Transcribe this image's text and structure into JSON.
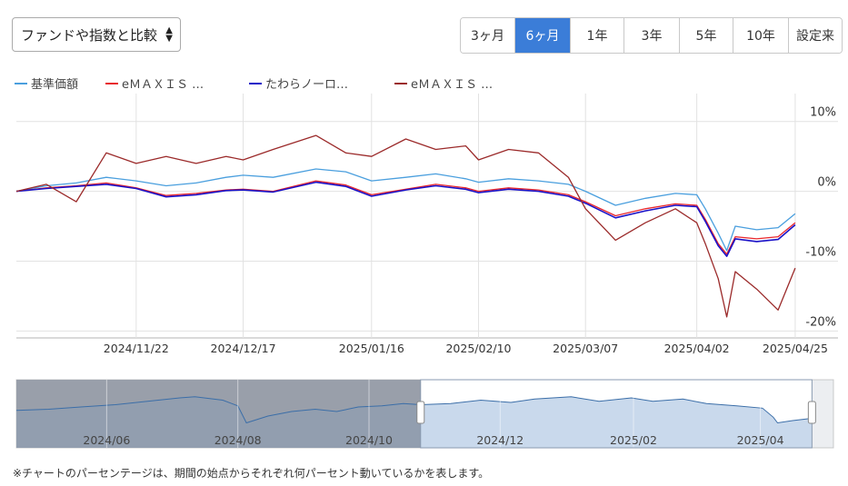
{
  "controls": {
    "compare_select": "ファンドや指数と比較",
    "periods": [
      {
        "label": "3ヶ月",
        "active": false
      },
      {
        "label": "6ヶ月",
        "active": true
      },
      {
        "label": "1年",
        "active": false
      },
      {
        "label": "3年",
        "active": false
      },
      {
        "label": "5年",
        "active": false
      },
      {
        "label": "10年",
        "active": false
      },
      {
        "label": "設定来",
        "active": false
      }
    ]
  },
  "legend": [
    {
      "label": "基準価額",
      "color": "#4a9fde"
    },
    {
      "label": "eＭＡＸＩＳ …",
      "color": "#e8262c"
    },
    {
      "label": "たわらノーロ…",
      "color": "#1a12c8"
    },
    {
      "label": "eＭＡＸＩＳ …",
      "color": "#9b2a2a"
    }
  ],
  "chart_data": {
    "type": "line",
    "y_unit": "%",
    "ylim": [
      -21,
      14
    ],
    "yticks": [
      10,
      0,
      -10,
      -20
    ],
    "ytick_labels": [
      "10%",
      "0%",
      "-10%",
      "-20%"
    ],
    "xlim": [
      "2024-10-25",
      "2025-05-05"
    ],
    "xticks": [
      "2024-11-22",
      "2024-12-17",
      "2025-01-16",
      "2025-02-10",
      "2025-03-07",
      "2025-04-02",
      "2025-04-25"
    ],
    "xtick_labels": [
      "2024/11/22",
      "2024/12/17",
      "2025/01/16",
      "2025/02/10",
      "2025/03/07",
      "2025/04/02",
      "2025/04/25"
    ],
    "grid": true,
    "legend_position": "top-left",
    "series": [
      {
        "name": "基準価額",
        "color": "#4a9fde",
        "x": [
          "2024-10-25",
          "2024-11-01",
          "2024-11-08",
          "2024-11-15",
          "2024-11-22",
          "2024-11-29",
          "2024-12-06",
          "2024-12-13",
          "2024-12-17",
          "2024-12-24",
          "2025-01-03",
          "2025-01-10",
          "2025-01-16",
          "2025-01-24",
          "2025-01-31",
          "2025-02-07",
          "2025-02-10",
          "2025-02-17",
          "2025-02-24",
          "2025-03-03",
          "2025-03-07",
          "2025-03-14",
          "2025-03-21",
          "2025-03-28",
          "2025-04-02",
          "2025-04-04",
          "2025-04-07",
          "2025-04-09",
          "2025-04-11",
          "2025-04-16",
          "2025-04-21",
          "2025-04-25"
        ],
        "y": [
          0.0,
          0.8,
          1.2,
          2.0,
          1.5,
          0.8,
          1.2,
          2.0,
          2.3,
          2.0,
          3.2,
          2.8,
          1.5,
          2.0,
          2.5,
          1.8,
          1.3,
          1.8,
          1.5,
          1.0,
          0.0,
          -2.0,
          -1.0,
          -0.3,
          -0.5,
          -2.5,
          -6.0,
          -8.5,
          -5.0,
          -5.5,
          -5.2,
          -3.2
        ]
      },
      {
        "name": "eＭＡＸＩＳ …",
        "color": "#e8262c",
        "x": [
          "2024-10-25",
          "2024-11-01",
          "2024-11-08",
          "2024-11-15",
          "2024-11-22",
          "2024-11-29",
          "2024-12-06",
          "2024-12-13",
          "2024-12-17",
          "2024-12-24",
          "2025-01-03",
          "2025-01-10",
          "2025-01-16",
          "2025-01-24",
          "2025-01-31",
          "2025-02-07",
          "2025-02-10",
          "2025-02-17",
          "2025-02-24",
          "2025-03-03",
          "2025-03-07",
          "2025-03-14",
          "2025-03-21",
          "2025-03-28",
          "2025-04-02",
          "2025-04-04",
          "2025-04-07",
          "2025-04-09",
          "2025-04-11",
          "2025-04-16",
          "2025-04-21",
          "2025-04-25"
        ],
        "y": [
          0.0,
          0.5,
          0.8,
          1.2,
          0.5,
          -0.6,
          -0.3,
          0.2,
          0.3,
          0.0,
          1.5,
          0.9,
          -0.5,
          0.3,
          1.0,
          0.5,
          0.0,
          0.5,
          0.2,
          -0.5,
          -1.5,
          -3.5,
          -2.5,
          -1.8,
          -2.0,
          -4.0,
          -7.5,
          -9.0,
          -6.5,
          -6.8,
          -6.5,
          -4.5
        ]
      },
      {
        "name": "たわらノーロ…",
        "color": "#1a12c8",
        "x": [
          "2024-10-25",
          "2024-11-01",
          "2024-11-08",
          "2024-11-15",
          "2024-11-22",
          "2024-11-29",
          "2024-12-06",
          "2024-12-13",
          "2024-12-17",
          "2024-12-24",
          "2025-01-03",
          "2025-01-10",
          "2025-01-16",
          "2025-01-24",
          "2025-01-31",
          "2025-02-07",
          "2025-02-10",
          "2025-02-17",
          "2025-02-24",
          "2025-03-03",
          "2025-03-07",
          "2025-03-14",
          "2025-03-21",
          "2025-03-28",
          "2025-04-02",
          "2025-04-04",
          "2025-04-07",
          "2025-04-09",
          "2025-04-11",
          "2025-04-16",
          "2025-04-21",
          "2025-04-25"
        ],
        "y": [
          0.0,
          0.4,
          0.7,
          1.0,
          0.4,
          -0.8,
          -0.5,
          0.1,
          0.2,
          -0.1,
          1.3,
          0.7,
          -0.7,
          0.2,
          0.8,
          0.3,
          -0.2,
          0.3,
          0.0,
          -0.7,
          -1.7,
          -3.8,
          -2.8,
          -2.0,
          -2.2,
          -4.3,
          -7.8,
          -9.3,
          -6.8,
          -7.2,
          -6.9,
          -4.8
        ]
      },
      {
        "name": "eＭＡＸＩＳ …",
        "color": "#9b2a2a",
        "x": [
          "2024-10-25",
          "2024-11-01",
          "2024-11-08",
          "2024-11-15",
          "2024-11-22",
          "2024-11-29",
          "2024-12-06",
          "2024-12-13",
          "2024-12-17",
          "2024-12-24",
          "2025-01-03",
          "2025-01-10",
          "2025-01-16",
          "2025-01-24",
          "2025-01-31",
          "2025-02-07",
          "2025-02-10",
          "2025-02-17",
          "2025-02-24",
          "2025-03-03",
          "2025-03-07",
          "2025-03-14",
          "2025-03-21",
          "2025-03-28",
          "2025-04-02",
          "2025-04-04",
          "2025-04-07",
          "2025-04-09",
          "2025-04-11",
          "2025-04-16",
          "2025-04-21",
          "2025-04-25"
        ],
        "y": [
          0.0,
          1.0,
          -1.5,
          5.5,
          4.0,
          5.0,
          4.0,
          5.0,
          4.5,
          6.0,
          8.0,
          5.5,
          5.0,
          7.5,
          6.0,
          6.5,
          4.5,
          6.0,
          5.5,
          2.0,
          -2.5,
          -7.0,
          -4.5,
          -2.5,
          -4.5,
          -7.5,
          -12.5,
          -18.0,
          -11.5,
          -14.0,
          -17.0,
          -11.0
        ]
      }
    ]
  },
  "navigator": {
    "xlim": [
      "2024-04-20",
      "2025-05-05"
    ],
    "ylim": [
      -30,
      30
    ],
    "selected_range": [
      "2024-10-25",
      "2025-04-25"
    ],
    "labels": [
      {
        "text": "2024/06",
        "x": "2024-06-01"
      },
      {
        "text": "2024/08",
        "x": "2024-08-01"
      },
      {
        "text": "2024/10",
        "x": "2024-10-01"
      },
      {
        "text": "2024/12",
        "x": "2024-12-01"
      },
      {
        "text": "2025/02",
        "x": "2025-02-01"
      },
      {
        "text": "2025/04",
        "x": "2025-04-01"
      }
    ],
    "series": {
      "x": [
        "2024-04-20",
        "2024-05-05",
        "2024-05-20",
        "2024-06-05",
        "2024-06-20",
        "2024-07-05",
        "2024-07-12",
        "2024-07-25",
        "2024-08-01",
        "2024-08-05",
        "2024-08-15",
        "2024-08-26",
        "2024-09-06",
        "2024-09-16",
        "2024-09-26",
        "2024-10-07",
        "2024-10-17",
        "2024-10-25",
        "2024-11-08",
        "2024-11-22",
        "2024-12-06",
        "2024-12-17",
        "2025-01-03",
        "2025-01-16",
        "2025-01-31",
        "2025-02-10",
        "2025-02-24",
        "2025-03-07",
        "2025-03-21",
        "2025-04-02",
        "2025-04-07",
        "2025-04-09",
        "2025-04-16",
        "2025-04-25"
      ],
      "y": [
        3.0,
        4.0,
        6.0,
        8.0,
        11.0,
        14.0,
        15.0,
        12.0,
        7.0,
        -8.0,
        -2.0,
        2.0,
        4.0,
        2.0,
        6.0,
        7.0,
        9.0,
        8.0,
        9.0,
        12.0,
        10.0,
        13.0,
        15.0,
        11.0,
        14.0,
        11.0,
        13.0,
        9.0,
        7.0,
        5.0,
        -3.0,
        -8.0,
        -6.0,
        -4.0
      ]
    }
  },
  "footnote": "※チャートのパーセンテージは、期間の始点からそれぞれ何パーセント動いているかを表します。"
}
